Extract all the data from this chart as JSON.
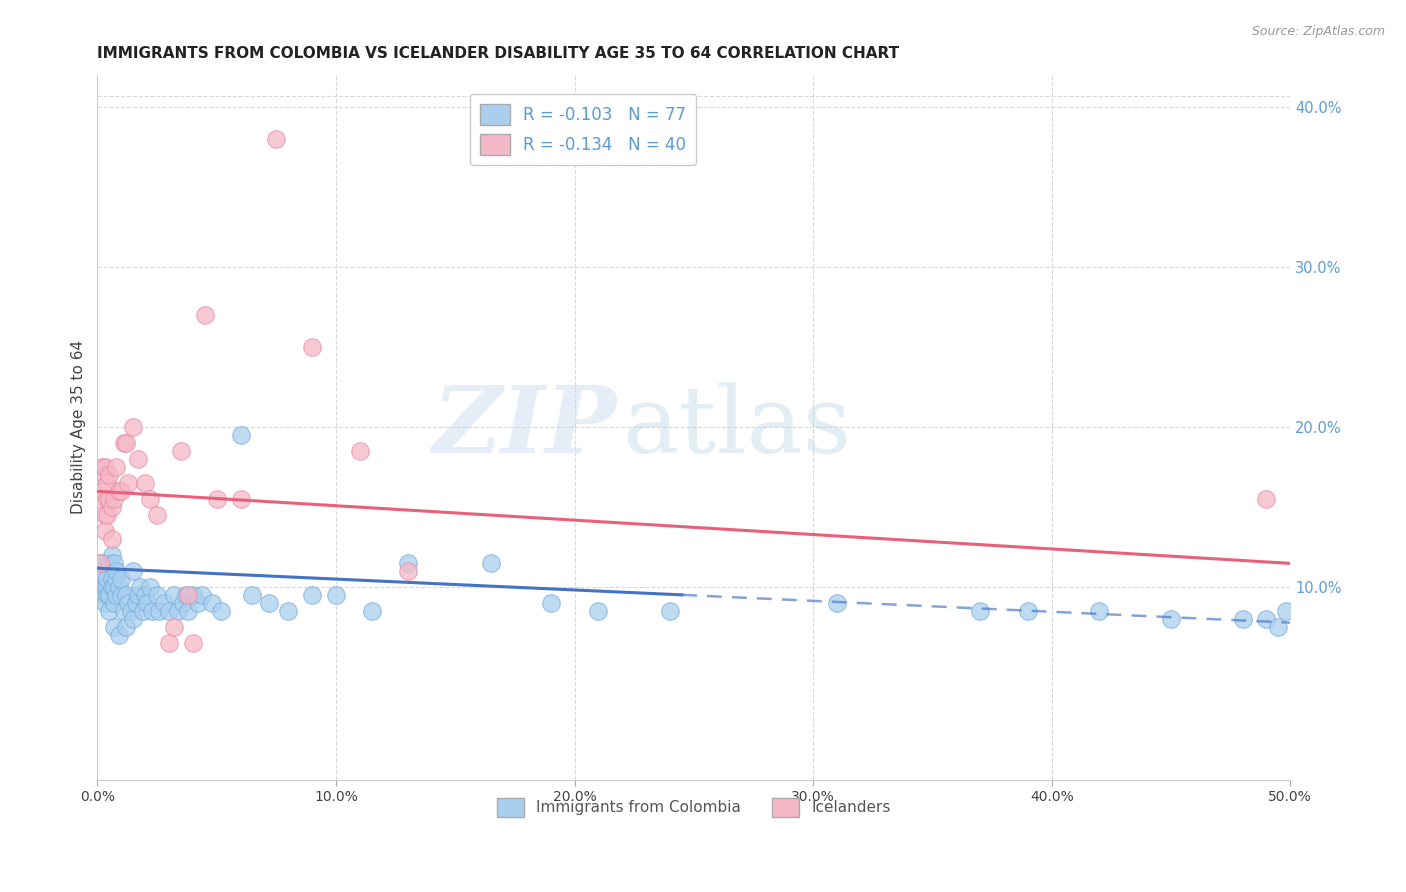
{
  "title": "IMMIGRANTS FROM COLOMBIA VS ICELANDER DISABILITY AGE 35 TO 64 CORRELATION CHART",
  "source": "Source: ZipAtlas.com",
  "ylabel": "Disability Age 35 to 64",
  "xlim": [
    0.0,
    0.5
  ],
  "ylim": [
    -0.02,
    0.42
  ],
  "yticks_right": [
    0.1,
    0.2,
    0.3,
    0.4
  ],
  "yticklabels_right": [
    "10.0%",
    "20.0%",
    "30.0%",
    "40.0%"
  ],
  "xtick_vals": [
    0.0,
    0.1,
    0.2,
    0.3,
    0.4,
    0.5
  ],
  "xticklabels": [
    "0.0%",
    "10.0%",
    "20.0%",
    "30.0%",
    "40.0%",
    "50.0%"
  ],
  "colombia_color": "#aacfee",
  "colombia_edge": "#7ab0e0",
  "icelander_color": "#f5b8c8",
  "icelander_edge": "#e890a8",
  "colombia_line_color": "#4472c4",
  "icelander_line_color": "#e8607a",
  "colombia_R": -0.103,
  "colombia_N": 77,
  "icelander_R": -0.134,
  "icelander_N": 40,
  "legend_label_colombia": "Immigrants from Colombia",
  "legend_label_icelander": "Icelanders",
  "watermark_zip": "ZIP",
  "watermark_atlas": "atlas",
  "background_color": "#ffffff",
  "grid_color": "#d8d8d8",
  "title_fontsize": 11,
  "tick_color": "#5b9bd5",
  "colombia_x": [
    0.001,
    0.001,
    0.002,
    0.002,
    0.003,
    0.003,
    0.003,
    0.004,
    0.004,
    0.004,
    0.005,
    0.005,
    0.005,
    0.006,
    0.006,
    0.006,
    0.007,
    0.007,
    0.007,
    0.007,
    0.008,
    0.008,
    0.008,
    0.009,
    0.009,
    0.01,
    0.01,
    0.011,
    0.012,
    0.012,
    0.013,
    0.014,
    0.015,
    0.015,
    0.016,
    0.017,
    0.018,
    0.019,
    0.02,
    0.021,
    0.022,
    0.023,
    0.025,
    0.026,
    0.028,
    0.03,
    0.032,
    0.034,
    0.036,
    0.037,
    0.038,
    0.04,
    0.042,
    0.044,
    0.048,
    0.052,
    0.06,
    0.065,
    0.072,
    0.08,
    0.09,
    0.1,
    0.115,
    0.13,
    0.165,
    0.19,
    0.21,
    0.24,
    0.31,
    0.37,
    0.39,
    0.42,
    0.45,
    0.48,
    0.49,
    0.495,
    0.498
  ],
  "colombia_y": [
    0.115,
    0.105,
    0.11,
    0.095,
    0.1,
    0.115,
    0.09,
    0.1,
    0.095,
    0.105,
    0.115,
    0.095,
    0.085,
    0.105,
    0.12,
    0.1,
    0.1,
    0.115,
    0.09,
    0.075,
    0.105,
    0.095,
    0.11,
    0.1,
    0.07,
    0.095,
    0.105,
    0.085,
    0.095,
    0.075,
    0.09,
    0.085,
    0.11,
    0.08,
    0.09,
    0.095,
    0.1,
    0.085,
    0.095,
    0.09,
    0.1,
    0.085,
    0.095,
    0.085,
    0.09,
    0.085,
    0.095,
    0.085,
    0.09,
    0.095,
    0.085,
    0.095,
    0.09,
    0.095,
    0.09,
    0.085,
    0.195,
    0.095,
    0.09,
    0.085,
    0.095,
    0.095,
    0.085,
    0.115,
    0.115,
    0.09,
    0.085,
    0.085,
    0.09,
    0.085,
    0.085,
    0.085,
    0.08,
    0.08,
    0.08,
    0.075,
    0.085
  ],
  "icelander_x": [
    0.001,
    0.001,
    0.002,
    0.002,
    0.003,
    0.003,
    0.003,
    0.003,
    0.004,
    0.004,
    0.004,
    0.005,
    0.005,
    0.006,
    0.006,
    0.007,
    0.008,
    0.009,
    0.01,
    0.011,
    0.012,
    0.013,
    0.015,
    0.017,
    0.02,
    0.022,
    0.025,
    0.03,
    0.032,
    0.035,
    0.038,
    0.04,
    0.045,
    0.05,
    0.06,
    0.075,
    0.09,
    0.11,
    0.13,
    0.49
  ],
  "icelander_y": [
    0.155,
    0.115,
    0.175,
    0.16,
    0.17,
    0.145,
    0.175,
    0.135,
    0.155,
    0.165,
    0.145,
    0.155,
    0.17,
    0.15,
    0.13,
    0.155,
    0.175,
    0.16,
    0.16,
    0.19,
    0.19,
    0.165,
    0.2,
    0.18,
    0.165,
    0.155,
    0.145,
    0.065,
    0.075,
    0.185,
    0.095,
    0.065,
    0.27,
    0.155,
    0.155,
    0.38,
    0.25,
    0.185,
    0.11,
    0.155
  ]
}
